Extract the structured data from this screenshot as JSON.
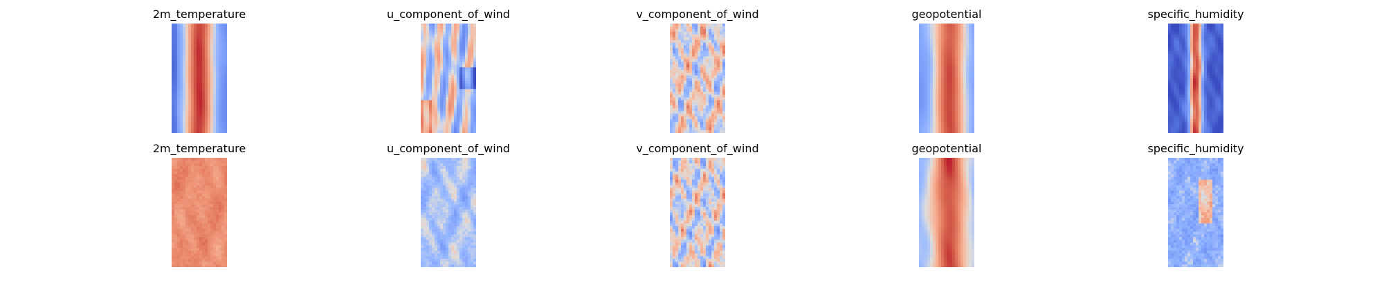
{
  "chart_data": [
    {
      "type": "heatmap",
      "title": "2m_temperature",
      "colormap": "coolwarm",
      "axes": "off",
      "pattern": "temperature_true"
    },
    {
      "type": "heatmap",
      "title": "u_component_of_wind",
      "colormap": "coolwarm",
      "axes": "off",
      "pattern": "uwind_true"
    },
    {
      "type": "heatmap",
      "title": "v_component_of_wind",
      "colormap": "coolwarm",
      "axes": "off",
      "pattern": "vwind_true"
    },
    {
      "type": "heatmap",
      "title": "geopotential",
      "colormap": "coolwarm",
      "axes": "off",
      "pattern": "geopotential_true"
    },
    {
      "type": "heatmap",
      "title": "specific_humidity",
      "colormap": "coolwarm",
      "axes": "off",
      "pattern": "humidity_true"
    },
    {
      "type": "heatmap",
      "title": "2m_temperature",
      "colormap": "coolwarm",
      "axes": "off",
      "pattern": "temperature_pred"
    },
    {
      "type": "heatmap",
      "title": "u_component_of_wind",
      "colormap": "coolwarm",
      "axes": "off",
      "pattern": "uwind_pred"
    },
    {
      "type": "heatmap",
      "title": "v_component_of_wind",
      "colormap": "coolwarm",
      "axes": "off",
      "pattern": "vwind_pred"
    },
    {
      "type": "heatmap",
      "title": "geopotential",
      "colormap": "coolwarm",
      "axes": "off",
      "pattern": "geopotential_pred"
    },
    {
      "type": "heatmap",
      "title": "specific_humidity",
      "colormap": "coolwarm",
      "axes": "off",
      "pattern": "humidity_pred"
    }
  ]
}
